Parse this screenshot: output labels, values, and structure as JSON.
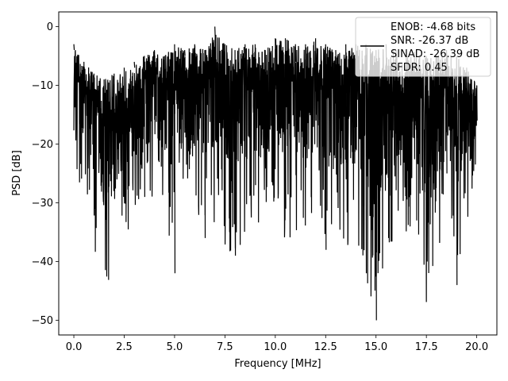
{
  "chart_data": {
    "type": "line",
    "xlabel": "Frequency [MHz]",
    "ylabel": "PSD [dB]",
    "xlim": [
      -0.75,
      21.0
    ],
    "ylim": [
      -52.5,
      2.5
    ],
    "xticks": [
      0.0,
      2.5,
      5.0,
      7.5,
      10.0,
      12.5,
      15.0,
      17.5,
      20.0
    ],
    "xtick_labels": [
      "0.0",
      "2.5",
      "5.0",
      "7.5",
      "10.0",
      "12.5",
      "15.0",
      "17.5",
      "20.0"
    ],
    "yticks": [
      0,
      -10,
      -20,
      -30,
      -40,
      -50
    ],
    "ytick_labels": [
      "0",
      "−10",
      "−20",
      "−30",
      "−40",
      "−50"
    ],
    "grid": true,
    "legend": {
      "placement": "upper right",
      "entries": [
        "ENOB: -4.68 bits",
        "SNR: -26.37 dB",
        "SINAD: -26.39 dB",
        "SFDR: 0.45"
      ]
    },
    "series": [
      {
        "color": "#000000",
        "x": [
          0.0,
          0.5,
          1.0,
          1.5,
          2.0,
          2.5,
          3.0,
          3.5,
          4.0,
          4.5,
          5.0,
          5.5,
          6.0,
          6.5,
          7.0,
          7.5,
          8.0,
          8.5,
          9.0,
          9.5,
          10.0,
          10.5,
          11.0,
          11.5,
          12.0,
          12.5,
          13.0,
          13.5,
          14.0,
          14.5,
          15.0,
          15.5,
          16.0,
          16.5,
          17.0,
          17.5,
          18.0,
          18.5,
          19.0,
          19.5,
          20.0
        ],
        "y": [
          -4,
          -12,
          -31,
          -17,
          -25,
          -20,
          -7,
          -29,
          -12,
          -21,
          -42,
          -5,
          -15,
          -36,
          -2,
          -22,
          -39,
          -8,
          -27,
          -18,
          -10,
          -31,
          -6,
          -24,
          -16,
          -38,
          -11,
          -26,
          -7,
          -42,
          -50,
          -9,
          -21,
          -14,
          -33,
          -18,
          -8,
          -25,
          -44,
          -13,
          -16
        ],
        "envelope_upper": [
          -3,
          -6,
          -8,
          -9,
          -8,
          -7,
          -6,
          -5,
          -4,
          -5,
          -3,
          -4,
          -3,
          -4,
          0,
          -3,
          -4,
          -3,
          -3,
          -4,
          -2,
          -2,
          -3,
          -3,
          -2,
          -3,
          -4,
          -3,
          -3,
          -3,
          -4,
          -3,
          -4,
          -5,
          -4,
          -5,
          -5,
          -4,
          -5,
          -7,
          -10
        ],
        "envelope_lower": [
          -22,
          -32,
          -40,
          -45,
          -42,
          -36,
          -33,
          -31,
          -30,
          -30,
          -42,
          -30,
          -32,
          -36,
          -34,
          -39,
          -39,
          -37,
          -35,
          -33,
          -30,
          -37,
          -35,
          -36,
          -34,
          -39,
          -36,
          -38,
          -37,
          -43,
          -50,
          -42,
          -38,
          -37,
          -38,
          -48,
          -38,
          -37,
          -44,
          -34,
          -23
        ],
        "noise_seed": 1234567
      }
    ]
  }
}
